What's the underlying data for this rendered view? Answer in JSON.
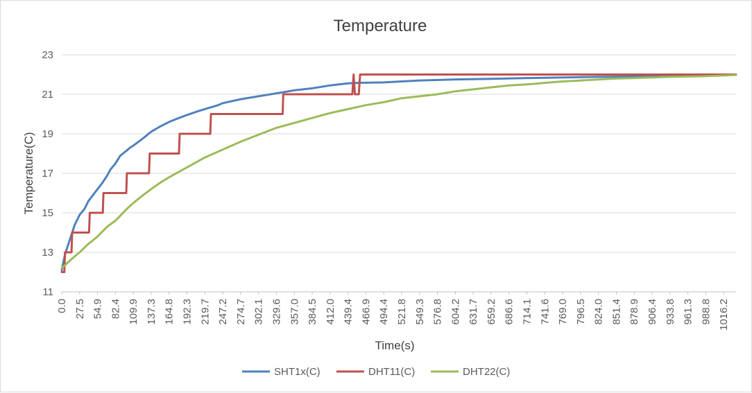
{
  "chart_data": {
    "type": "line",
    "title": "Temperature",
    "xlabel": "Time(s)",
    "ylabel": "Temperature(C)",
    "ylim": [
      11,
      23
    ],
    "yticks": [
      "11",
      "13",
      "15",
      "17",
      "19",
      "21",
      "23"
    ],
    "xlim": [
      0,
      1035
    ],
    "xtick_step": 27.46,
    "xticks": [
      "0.0",
      "27.5",
      "54.9",
      "82.4",
      "109.9",
      "137.3",
      "164.8",
      "192.3",
      "219.7",
      "247.2",
      "274.7",
      "302.1",
      "329.6",
      "357.0",
      "384.5",
      "412.0",
      "439.4",
      "466.9",
      "494.4",
      "521.8",
      "549.3",
      "576.8",
      "604.2",
      "631.7",
      "659.2",
      "686.6",
      "714.1",
      "741.6",
      "769.0",
      "796.5",
      "824.0",
      "851.4",
      "878.9",
      "906.4",
      "933.8",
      "961.3",
      "988.8",
      "1016.2"
    ],
    "grid": "horizontal",
    "legend_position": "bottom",
    "series": [
      {
        "name": "SHT1x(C)",
        "color": "#4f81bd",
        "x": [
          0,
          5,
          10,
          15,
          20,
          27.5,
          35,
          41,
          48,
          54.9,
          62,
          70,
          75,
          82.4,
          90,
          98,
          105,
          109.9,
          118,
          126,
          137.3,
          150,
          164.8,
          180,
          192.3,
          210,
          219.7,
          240,
          247.2,
          274.7,
          302.1,
          329.6,
          357,
          384.5,
          412,
          439.4,
          455,
          494.4,
          549.3,
          604.2,
          659.2,
          714.1,
          769,
          824,
          878.9,
          933.8,
          988.8,
          1035
        ],
        "y": [
          12.1,
          12.9,
          13.4,
          13.9,
          14.4,
          14.9,
          15.2,
          15.6,
          15.9,
          16.2,
          16.5,
          16.9,
          17.2,
          17.5,
          17.9,
          18.1,
          18.3,
          18.4,
          18.6,
          18.8,
          19.1,
          19.35,
          19.6,
          19.8,
          19.95,
          20.15,
          20.25,
          20.45,
          20.55,
          20.75,
          20.9,
          21.05,
          21.2,
          21.3,
          21.45,
          21.55,
          21.58,
          21.6,
          21.7,
          21.75,
          21.78,
          21.82,
          21.85,
          21.88,
          21.9,
          21.92,
          21.95,
          22.0
        ]
      },
      {
        "name": "DHT11(C)",
        "color": "#c0504d",
        "x": [
          0,
          4,
          5,
          15,
          16,
          27.5,
          28,
          42,
          43,
          63,
          64,
          99,
          100,
          134,
          135,
          180,
          181,
          228,
          229,
          290,
          291,
          339,
          340,
          446,
          448,
          450,
          452,
          456,
          458,
          460,
          1035
        ],
        "y": [
          12,
          12,
          13,
          13,
          14,
          14,
          14,
          14,
          15,
          15,
          16,
          16,
          17,
          17,
          18,
          18,
          19,
          19,
          20,
          20,
          20,
          20,
          21,
          21,
          22,
          21,
          21,
          21,
          22,
          22,
          22
        ]
      },
      {
        "name": "DHT22(C)",
        "color": "#9bbb59",
        "x": [
          0,
          10,
          20,
          27.5,
          40,
          54.9,
          70,
          82.4,
          100,
          109.9,
          125,
          137.3,
          150,
          164.8,
          192.3,
          219.7,
          247.2,
          274.7,
          302.1,
          329.6,
          357,
          384.5,
          412,
          439.4,
          466.9,
          494.4,
          521.8,
          549.3,
          576.8,
          604.2,
          631.7,
          659.2,
          686.6,
          714.1,
          741.6,
          769,
          796.5,
          824,
          851.4,
          878.9,
          906.4,
          933.8,
          961.3,
          988.8,
          1016.2,
          1035
        ],
        "y": [
          12.2,
          12.5,
          12.8,
          13.0,
          13.4,
          13.8,
          14.3,
          14.6,
          15.2,
          15.5,
          15.9,
          16.2,
          16.5,
          16.8,
          17.3,
          17.8,
          18.2,
          18.6,
          18.95,
          19.3,
          19.55,
          19.8,
          20.05,
          20.25,
          20.45,
          20.6,
          20.8,
          20.9,
          21.0,
          21.15,
          21.25,
          21.35,
          21.45,
          21.5,
          21.58,
          21.65,
          21.7,
          21.75,
          21.8,
          21.82,
          21.85,
          21.88,
          21.9,
          21.92,
          21.95,
          21.98
        ]
      }
    ]
  }
}
